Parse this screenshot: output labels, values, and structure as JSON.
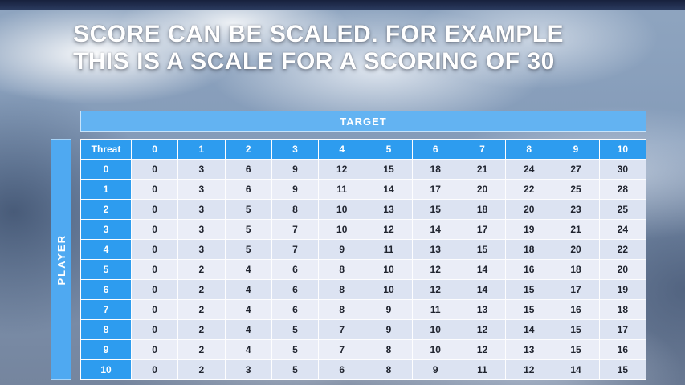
{
  "slide": {
    "title_line1": "SCORE CAN BE SCALED. FOR EXAMPLE",
    "title_line2": "THIS IS A SCALE FOR A SCORING OF 30"
  },
  "table": {
    "target_label": "TARGET",
    "player_label": "PLAYER",
    "corner_label": "Threat",
    "column_headers": [
      "0",
      "1",
      "2",
      "3",
      "4",
      "5",
      "6",
      "7",
      "8",
      "9",
      "10"
    ],
    "rows": [
      {
        "label": "0",
        "values": [
          0,
          3,
          6,
          9,
          12,
          15,
          18,
          21,
          24,
          27,
          30
        ]
      },
      {
        "label": "1",
        "values": [
          0,
          3,
          6,
          9,
          11,
          14,
          17,
          20,
          22,
          25,
          28
        ]
      },
      {
        "label": "2",
        "values": [
          0,
          3,
          5,
          8,
          10,
          13,
          15,
          18,
          20,
          23,
          25
        ]
      },
      {
        "label": "3",
        "values": [
          0,
          3,
          5,
          7,
          10,
          12,
          14,
          17,
          19,
          21,
          24
        ]
      },
      {
        "label": "4",
        "values": [
          0,
          3,
          5,
          7,
          9,
          11,
          13,
          15,
          18,
          20,
          22
        ]
      },
      {
        "label": "5",
        "values": [
          0,
          2,
          4,
          6,
          8,
          10,
          12,
          14,
          16,
          18,
          20
        ]
      },
      {
        "label": "6",
        "values": [
          0,
          2,
          4,
          6,
          8,
          10,
          12,
          14,
          15,
          17,
          19
        ]
      },
      {
        "label": "7",
        "values": [
          0,
          2,
          4,
          6,
          8,
          9,
          11,
          13,
          15,
          16,
          18
        ]
      },
      {
        "label": "8",
        "values": [
          0,
          2,
          4,
          5,
          7,
          9,
          10,
          12,
          14,
          15,
          17
        ]
      },
      {
        "label": "9",
        "values": [
          0,
          2,
          4,
          5,
          7,
          8,
          10,
          12,
          13,
          15,
          16
        ]
      },
      {
        "label": "10",
        "values": [
          0,
          2,
          3,
          5,
          6,
          8,
          9,
          11,
          12,
          14,
          15
        ]
      }
    ]
  },
  "colors": {
    "header_blue": "#2D9CEF",
    "target_bar_blue": "#63B3F2",
    "player_bar_blue": "#4FA9F1",
    "row_band_dark": "#DCE3F2",
    "row_band_light": "#EAEDF7",
    "cell_text": "#20242F",
    "title_text": "#FFFFFF"
  }
}
